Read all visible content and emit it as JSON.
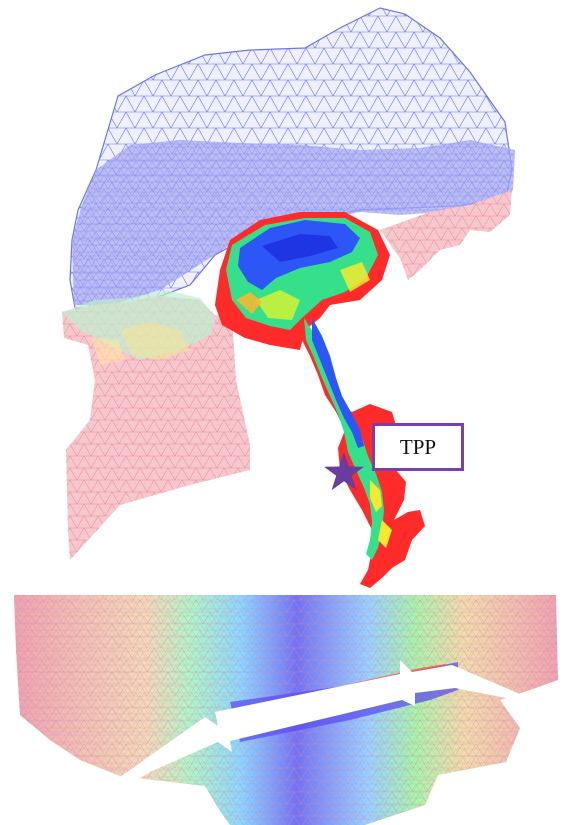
{
  "top_panel": {
    "marker_label": "TPP",
    "marker_color": "#6a3ba0",
    "mesh_colors": [
      "#5a64d8",
      "#2f63ff",
      "#23d0ff",
      "#34e38a",
      "#9af23a",
      "#ff1f1f",
      "#f19aa5"
    ]
  },
  "bottom_panel": {
    "mesh_colors": [
      "#f08b98",
      "#8fd3ff",
      "#98ff9a",
      "#ffd24a",
      "#5d4df0"
    ]
  }
}
